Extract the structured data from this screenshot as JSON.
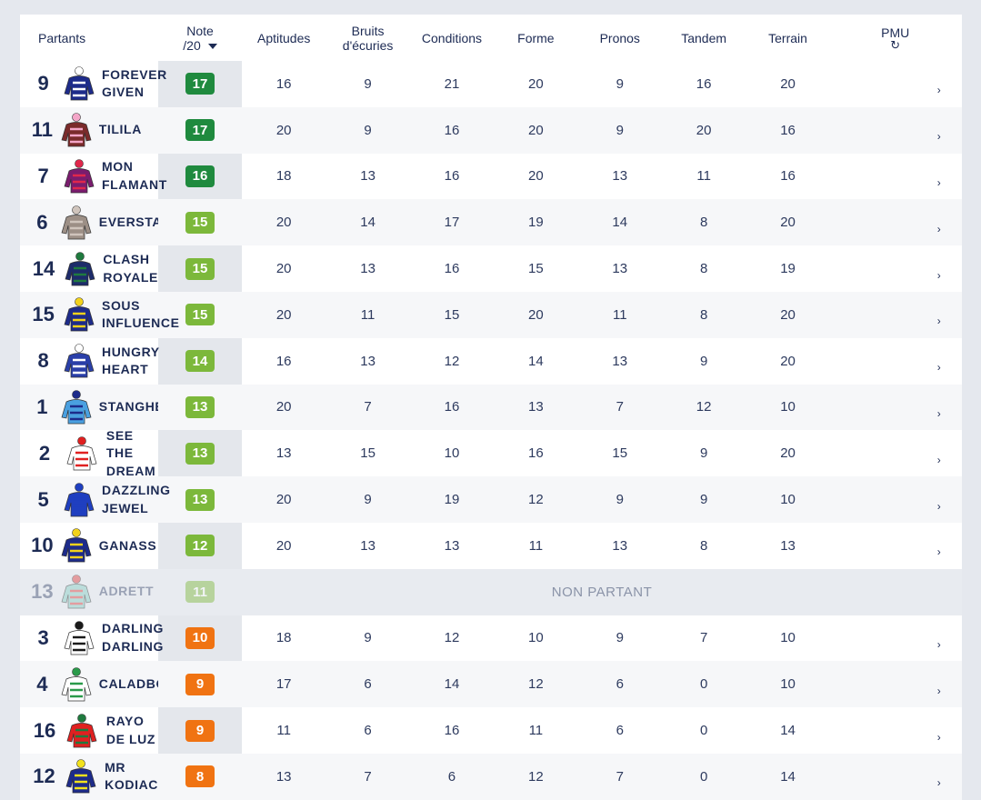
{
  "header": {
    "partants": "Partants",
    "note_line1": "Note",
    "note_line2": "/20",
    "cols": [
      "Aptitudes",
      "Bruits d'écuries",
      "Conditions",
      "Forme",
      "Pronos",
      "Tandem",
      "Terrain"
    ],
    "pmu": "PMU",
    "refresh_icon": "↻"
  },
  "colors": {
    "dark_green": "#1f8a3e",
    "light_green": "#7cb83b",
    "orange": "#f07312",
    "navy": "#1d2b54"
  },
  "non_partant_label": "NON PARTANT",
  "arrow_glyph": "›",
  "rows": [
    {
      "num": "9",
      "name": "FOREVER GIVEN",
      "note": "17",
      "color": "#1f8a3e",
      "scores": [
        "16",
        "9",
        "21",
        "20",
        "9",
        "16",
        "20"
      ],
      "silk": "navy-white-stripes"
    },
    {
      "num": "11",
      "name": "TILILA",
      "note": "17",
      "color": "#1f8a3e",
      "scores": [
        "20",
        "9",
        "16",
        "20",
        "9",
        "20",
        "16"
      ],
      "silk": "maroon-pink-cap"
    },
    {
      "num": "7",
      "name": "MON FLAMANT",
      "note": "16",
      "color": "#1f8a3e",
      "scores": [
        "18",
        "13",
        "16",
        "20",
        "13",
        "11",
        "16"
      ],
      "silk": "purple-red-star"
    },
    {
      "num": "6",
      "name": "EVERSTAR",
      "note": "15",
      "color": "#7cb83b",
      "scores": [
        "20",
        "14",
        "17",
        "19",
        "14",
        "8",
        "20"
      ],
      "silk": "grey"
    },
    {
      "num": "14",
      "name": "CLASH ROYALE",
      "note": "15",
      "color": "#7cb83b",
      "scores": [
        "20",
        "13",
        "16",
        "15",
        "13",
        "8",
        "19"
      ],
      "silk": "navy-green"
    },
    {
      "num": "15",
      "name": "SOUS INFLUENCE",
      "note": "15",
      "color": "#7cb83b",
      "scores": [
        "20",
        "11",
        "15",
        "20",
        "11",
        "8",
        "20"
      ],
      "silk": "navy-yellow-v"
    },
    {
      "num": "8",
      "name": "HUNGRY HEART",
      "note": "14",
      "color": "#7cb83b",
      "scores": [
        "16",
        "13",
        "12",
        "14",
        "13",
        "9",
        "20"
      ],
      "silk": "blue-white-stripes"
    },
    {
      "num": "1",
      "name": "STANGHEL",
      "note": "13",
      "color": "#7cb83b",
      "scores": [
        "20",
        "7",
        "16",
        "13",
        "7",
        "12",
        "10"
      ],
      "silk": "lightblue-diamond"
    },
    {
      "num": "2",
      "name": "SEE THE DREAM",
      "note": "13",
      "color": "#7cb83b",
      "scores": [
        "13",
        "15",
        "10",
        "16",
        "15",
        "9",
        "20"
      ],
      "silk": "red-white"
    },
    {
      "num": "5",
      "name": "DAZZLING JEWEL",
      "note": "13",
      "color": "#7cb83b",
      "scores": [
        "20",
        "9",
        "19",
        "12",
        "9",
        "9",
        "10"
      ],
      "silk": "royal-blue"
    },
    {
      "num": "10",
      "name": "GANASS",
      "note": "12",
      "color": "#7cb83b",
      "scores": [
        "20",
        "13",
        "13",
        "11",
        "13",
        "8",
        "13"
      ],
      "silk": "navy-yellow-v"
    },
    {
      "num": "13",
      "name": "ADRETT",
      "note": "11",
      "color": "#7cb83b",
      "scores": [],
      "np": true,
      "silk": "teal-red-cross"
    },
    {
      "num": "3",
      "name": "DARLING DARLING",
      "note": "10",
      "color": "#f07312",
      "scores": [
        "18",
        "9",
        "12",
        "10",
        "9",
        "7",
        "10"
      ],
      "silk": "black-white-star"
    },
    {
      "num": "4",
      "name": "CALADBOLG",
      "note": "9",
      "color": "#f07312",
      "scores": [
        "17",
        "6",
        "14",
        "12",
        "6",
        "0",
        "10"
      ],
      "silk": "green-white-star"
    },
    {
      "num": "16",
      "name": "RAYO DE LUZ",
      "note": "9",
      "color": "#f07312",
      "scores": [
        "11",
        "6",
        "16",
        "11",
        "6",
        "0",
        "14"
      ],
      "silk": "red-green"
    },
    {
      "num": "12",
      "name": "MR KODIAC",
      "note": "8",
      "color": "#f07312",
      "scores": [
        "13",
        "7",
        "6",
        "12",
        "7",
        "0",
        "14"
      ],
      "silk": "navy-yellow-cap"
    }
  ]
}
